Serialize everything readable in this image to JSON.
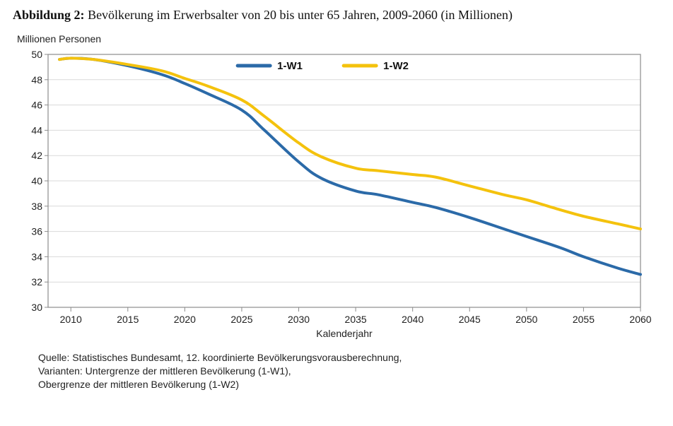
{
  "title": {
    "prefix": "Abbildung 2:",
    "rest": " Bevölkerung im Erwerbsalter von 20 bis unter 65 Jahren, 2009-2060 (in Millionen)",
    "fontsize_pt": 14,
    "color": "#000000"
  },
  "chart": {
    "type": "line",
    "background_color": "#ffffff",
    "plot_border_color": "#8c8c8c",
    "grid_color": "#d9d9d9",
    "axis_color": "#8c8c8c",
    "yaxis_label": "Millionen Personen",
    "xaxis_label": "Kalenderjahr",
    "label_fontsize_pt": 11,
    "tick_fontsize_pt": 11,
    "xlim": [
      2008,
      2060
    ],
    "ylim": [
      30,
      50
    ],
    "xticks": [
      2010,
      2015,
      2020,
      2025,
      2030,
      2035,
      2040,
      2045,
      2050,
      2055,
      2060
    ],
    "yticks": [
      30,
      32,
      34,
      36,
      38,
      40,
      42,
      44,
      46,
      48,
      50
    ],
    "legend": {
      "position": "top-center",
      "fontsize_pt": 12,
      "items": [
        {
          "label": "1-W1",
          "color": "#2b6aa8",
          "line_width": 4
        },
        {
          "label": "1-W2",
          "color": "#f4c20d",
          "line_width": 4
        }
      ]
    },
    "series": [
      {
        "name": "1-W1",
        "color": "#2b6aa8",
        "line_width": 4,
        "points": [
          [
            2009,
            49.6
          ],
          [
            2010,
            49.7
          ],
          [
            2012,
            49.6
          ],
          [
            2015,
            49.1
          ],
          [
            2018,
            48.4
          ],
          [
            2020,
            47.7
          ],
          [
            2022,
            46.9
          ],
          [
            2025,
            45.6
          ],
          [
            2027,
            44.0
          ],
          [
            2030,
            41.5
          ],
          [
            2032,
            40.2
          ],
          [
            2035,
            39.2
          ],
          [
            2037,
            38.9
          ],
          [
            2040,
            38.3
          ],
          [
            2042,
            37.9
          ],
          [
            2045,
            37.1
          ],
          [
            2048,
            36.2
          ],
          [
            2050,
            35.6
          ],
          [
            2053,
            34.7
          ],
          [
            2055,
            34.0
          ],
          [
            2058,
            33.1
          ],
          [
            2060,
            32.6
          ]
        ]
      },
      {
        "name": "1-W2",
        "color": "#f4c20d",
        "line_width": 4,
        "points": [
          [
            2009,
            49.6
          ],
          [
            2010,
            49.7
          ],
          [
            2012,
            49.6
          ],
          [
            2015,
            49.2
          ],
          [
            2018,
            48.7
          ],
          [
            2020,
            48.1
          ],
          [
            2022,
            47.5
          ],
          [
            2025,
            46.4
          ],
          [
            2027,
            45.1
          ],
          [
            2030,
            43.0
          ],
          [
            2032,
            41.9
          ],
          [
            2035,
            41.0
          ],
          [
            2037,
            40.8
          ],
          [
            2040,
            40.5
          ],
          [
            2042,
            40.3
          ],
          [
            2045,
            39.6
          ],
          [
            2048,
            38.9
          ],
          [
            2050,
            38.5
          ],
          [
            2053,
            37.7
          ],
          [
            2055,
            37.2
          ],
          [
            2058,
            36.6
          ],
          [
            2060,
            36.2
          ]
        ]
      }
    ]
  },
  "notes": {
    "line1": "Quelle: Statistisches Bundesamt, 12. koordinierte Bevölkerungsvorausberechnung,",
    "line2": "Varianten: Untergrenze der mittleren Bevölkerung (1-W1),",
    "line3": "Obergrenze der mittleren Bevölkerung (1-W2)",
    "fontsize_pt": 11,
    "color": "#222222"
  }
}
